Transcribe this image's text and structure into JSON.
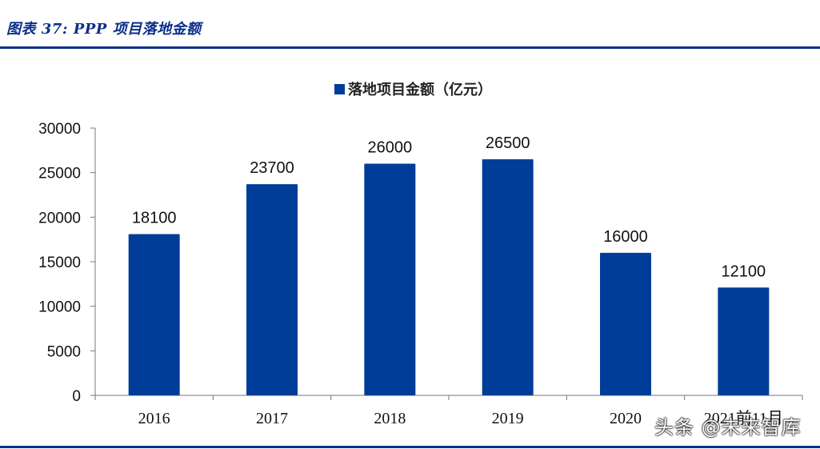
{
  "header": {
    "figure_title": "图表 37:  PPP 项目落地金额"
  },
  "watermark": "头条 @未来智库",
  "colors": {
    "bar": "#003d99",
    "rule": "#0b2f8a"
  },
  "chart_data": {
    "type": "bar",
    "categories": [
      "2016",
      "2017",
      "2018",
      "2019",
      "2020",
      "2021前11月"
    ],
    "series": [
      {
        "name": "落地项目金额（亿元）",
        "values": [
          18100,
          23700,
          26000,
          26500,
          16000,
          12100
        ]
      }
    ],
    "data_labels": [
      "18100",
      "23700",
      "26000",
      "26500",
      "16000",
      "12100"
    ],
    "ylim": [
      0,
      30000
    ],
    "yticks": [
      0,
      5000,
      10000,
      15000,
      20000,
      25000,
      30000
    ],
    "ytick_labels": [
      "0",
      "5000",
      "10000",
      "15000",
      "20000",
      "25000",
      "30000"
    ],
    "grid": false,
    "legend_position": "top-center"
  }
}
